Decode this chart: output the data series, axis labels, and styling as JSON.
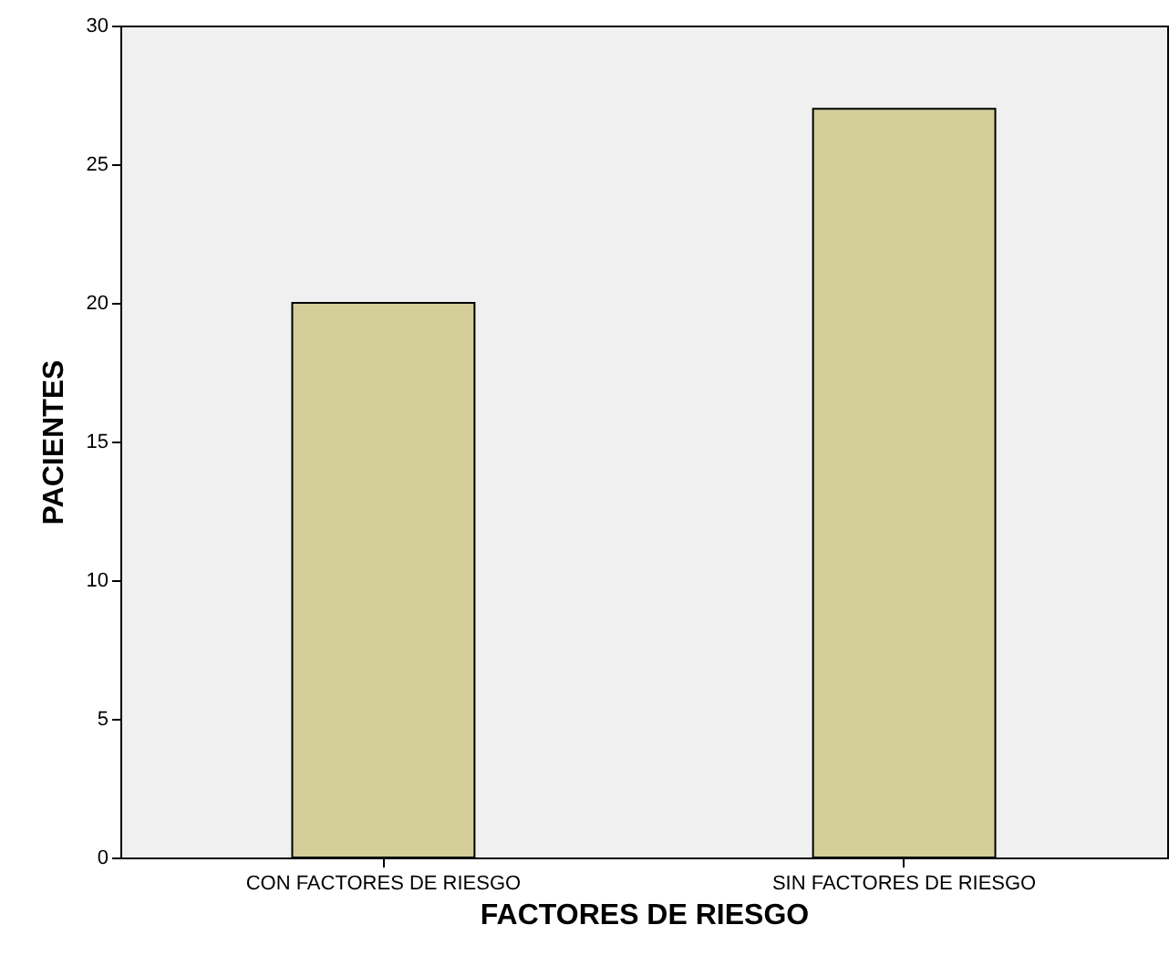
{
  "chart_data": {
    "type": "bar",
    "xlabel": "FACTORES DE RIESGO",
    "ylabel": "PACIENTES",
    "categories": [
      "CON FACTORES DE RIESGO",
      "SIN FACTORES DE RIESGO"
    ],
    "values": [
      20,
      27
    ],
    "color": "#d3ce99",
    "ylim": [
      0,
      30
    ],
    "yticks": [
      0,
      5,
      10,
      15,
      20,
      25,
      30
    ],
    "grid": false
  }
}
